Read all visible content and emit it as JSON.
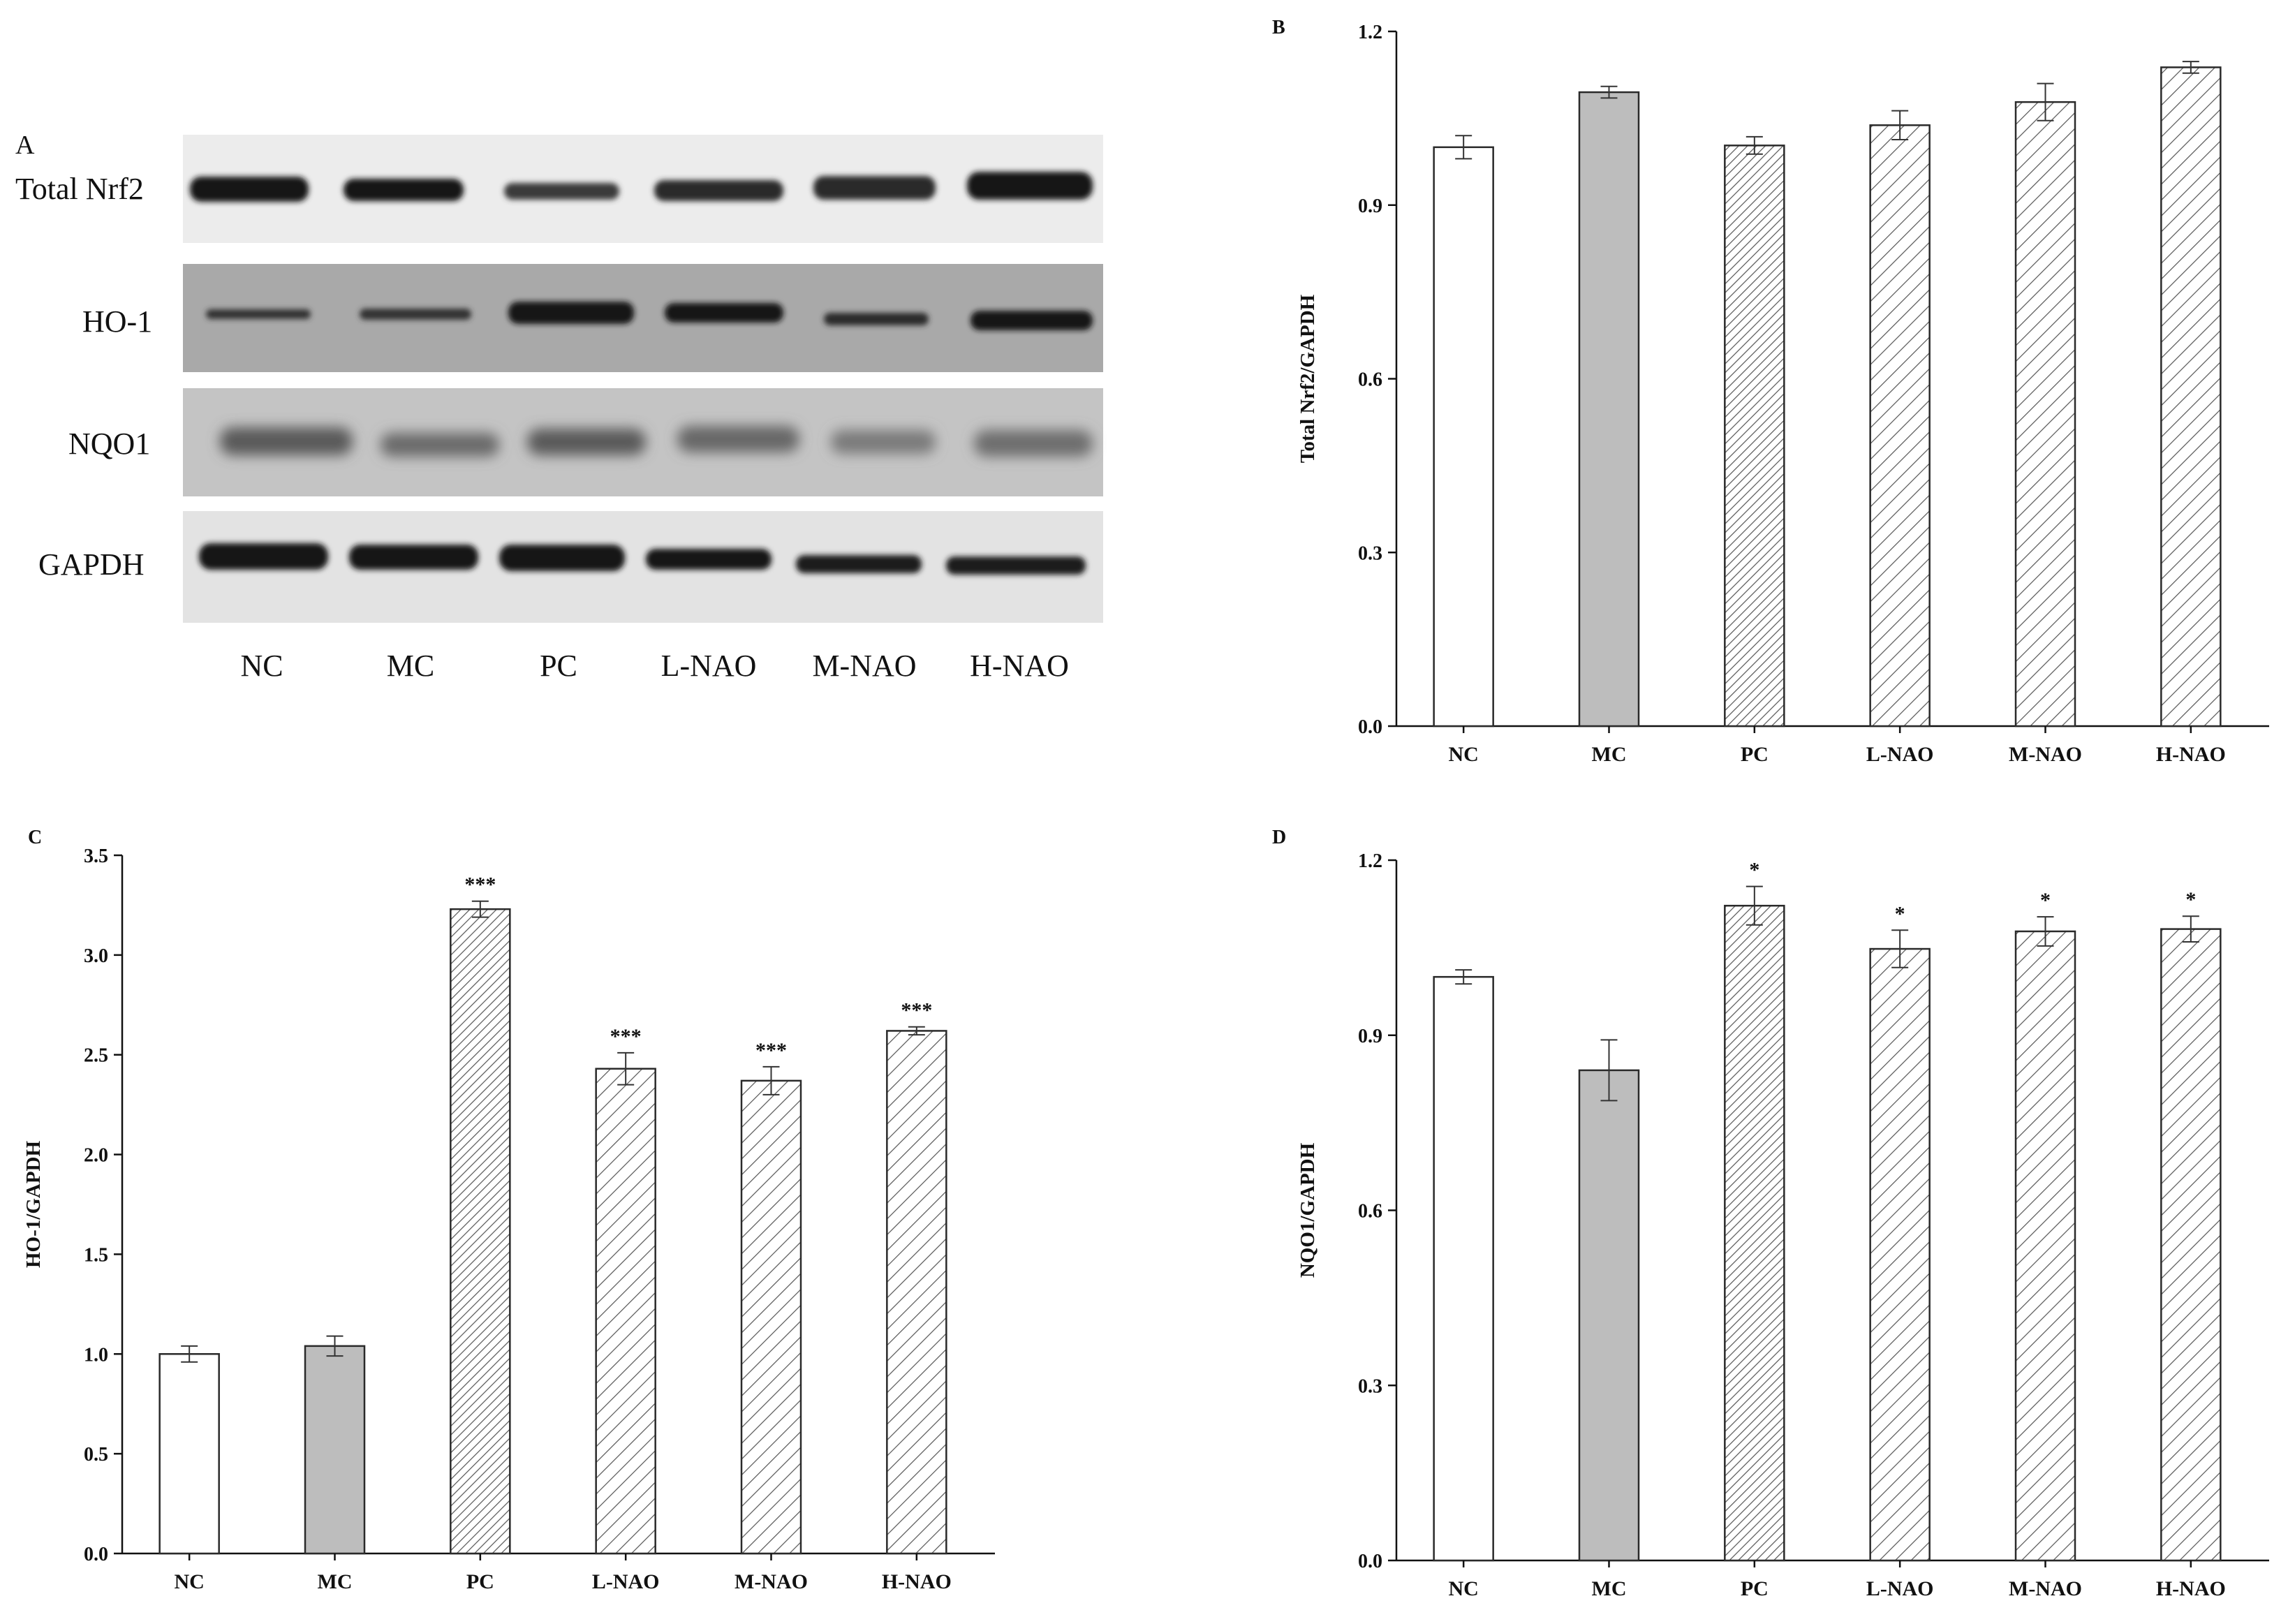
{
  "panel_a": {
    "letter": "A",
    "rows": [
      "Total Nrf2",
      "HO-1",
      "NQO1",
      "GAPDH"
    ],
    "lanes": [
      "NC",
      "MC",
      "PC",
      "L-NAO",
      "M-NAO",
      "H-NAO"
    ]
  },
  "colors": {
    "axis": "#111111",
    "bar_outline": "#2a2a2a",
    "nc_fill": "#ffffff",
    "mc_fill": "#bdbdbd",
    "hatch_fill": "#ffffff",
    "hatch_line": "#555555",
    "blot_bg_light": "#e9e9e9",
    "blot_bg_dark": "#aaaaaa",
    "band": "#141414"
  },
  "chart_data": [
    {
      "panel": "B",
      "type": "bar",
      "categories": [
        "NC",
        "MC",
        "PC",
        "L-NAO",
        "M-NAO",
        "H-NAO"
      ],
      "values": [
        1.0,
        1.095,
        1.003,
        1.038,
        1.078,
        1.138
      ],
      "errors": [
        0.02,
        0.01,
        0.015,
        0.025,
        0.032,
        0.01
      ],
      "significance": [
        "",
        "",
        "",
        "",
        "",
        ""
      ],
      "fills": [
        "plain",
        "gray",
        "hatch-dense",
        "hatch",
        "hatch",
        "hatch"
      ],
      "ylabel": "Total Nrf2/GAPDH",
      "ylim": [
        0,
        1.2
      ],
      "yticks": [
        "0.0",
        "0.3",
        "0.6",
        "0.9",
        "1.2"
      ]
    },
    {
      "panel": "C",
      "type": "bar",
      "categories": [
        "NC",
        "MC",
        "PC",
        "L-NAO",
        "M-NAO",
        "H-NAO"
      ],
      "values": [
        1.0,
        1.04,
        3.23,
        2.43,
        2.37,
        2.62
      ],
      "errors": [
        0.04,
        0.05,
        0.04,
        0.08,
        0.07,
        0.02
      ],
      "significance": [
        "",
        "",
        "***",
        "***",
        "***",
        "***"
      ],
      "fills": [
        "plain",
        "gray",
        "hatch-dense",
        "hatch",
        "hatch",
        "hatch"
      ],
      "ylabel": "HO-1/GAPDH",
      "ylim": [
        0,
        3.5
      ],
      "yticks": [
        "0.0",
        "0.5",
        "1.0",
        "1.5",
        "2.0",
        "2.5",
        "3.0",
        "3.5"
      ]
    },
    {
      "panel": "D",
      "type": "bar",
      "categories": [
        "NC",
        "MC",
        "PC",
        "L-NAO",
        "M-NAO",
        "H-NAO"
      ],
      "values": [
        1.0,
        0.84,
        1.122,
        1.048,
        1.078,
        1.082
      ],
      "errors": [
        0.012,
        0.052,
        0.033,
        0.032,
        0.025,
        0.022
      ],
      "significance": [
        "",
        "",
        "*",
        "*",
        "*",
        "*"
      ],
      "fills": [
        "plain",
        "gray",
        "hatch-dense",
        "hatch",
        "hatch",
        "hatch"
      ],
      "ylabel": "NQO1/GAPDH",
      "ylim": [
        0,
        1.2
      ],
      "yticks": [
        "0.0",
        "0.3",
        "0.6",
        "0.9",
        "1.2"
      ]
    }
  ]
}
